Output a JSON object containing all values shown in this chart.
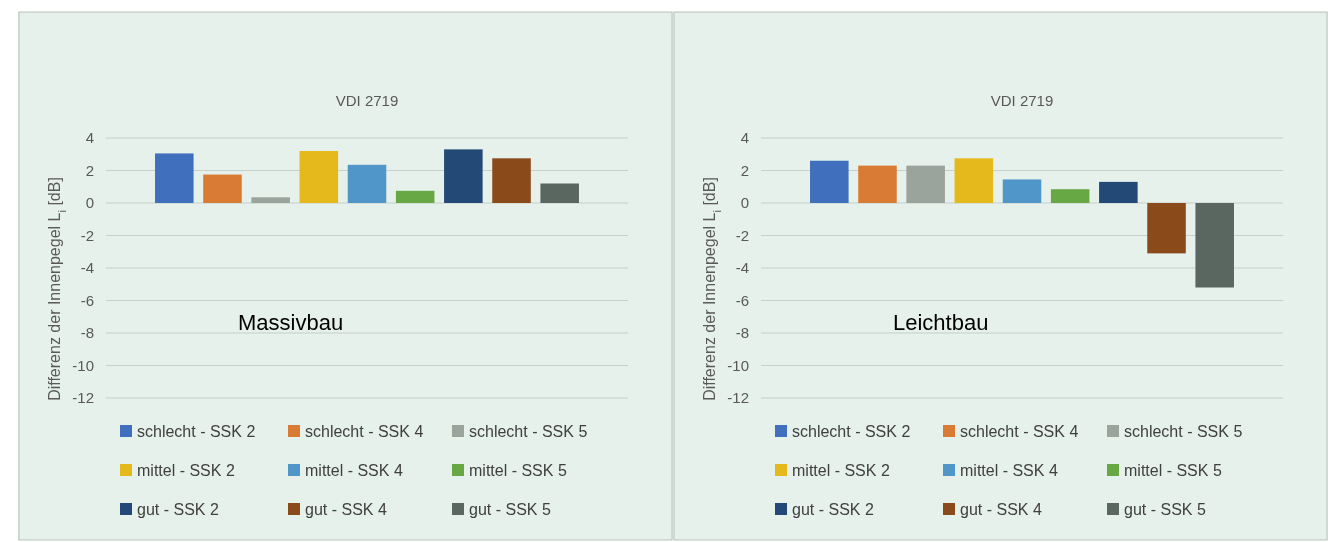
{
  "chart_data": [
    {
      "type": "bar",
      "title": "VDI 2719",
      "ylabel": "Differenz der Innenpegel L$_{i}$ [dB]",
      "annotations": [
        "Massivbau"
      ],
      "categories": [
        null
      ],
      "ylim": [
        -12,
        4
      ],
      "yticks": [
        -12,
        -10,
        -8,
        -6,
        -4,
        -2,
        0,
        2,
        4
      ],
      "grid": "y",
      "legend": "bottom",
      "series": [
        {
          "name": "schlecht - SSK 2",
          "color": "#3f6fbd",
          "values": [
            3.05
          ]
        },
        {
          "name": "schlecht - SSK 4",
          "color": "#d97b35",
          "values": [
            1.75
          ]
        },
        {
          "name": "schlecht - SSK 5",
          "color": "#9aa39c",
          "values": [
            0.35
          ]
        },
        {
          "name": "mittel - SSK 2",
          "color": "#e5b81c",
          "values": [
            3.2
          ]
        },
        {
          "name": "mittel - SSK 4",
          "color": "#5096c9",
          "values": [
            2.35
          ]
        },
        {
          "name": "mittel - SSK 5",
          "color": "#67a845",
          "values": [
            0.75
          ]
        },
        {
          "name": "gut - SSK 2",
          "color": "#234a77",
          "values": [
            3.3
          ]
        },
        {
          "name": "gut - SSK 4",
          "color": "#8b4a19",
          "values": [
            2.75
          ]
        },
        {
          "name": "gut - SSK 5",
          "color": "#5a6660",
          "values": [
            1.2
          ]
        }
      ]
    },
    {
      "type": "bar",
      "title": "VDI 2719",
      "ylabel": "Differenz der Innenpegel L$_{i}$ [dB]",
      "annotations": [
        "Leichtbau"
      ],
      "categories": [
        null
      ],
      "ylim": [
        -12,
        4
      ],
      "yticks": [
        -12,
        -10,
        -8,
        -6,
        -4,
        -2,
        0,
        2,
        4
      ],
      "grid": "y",
      "legend": "bottom",
      "series": [
        {
          "name": "schlecht - SSK 2",
          "color": "#3f6fbd",
          "values": [
            2.6
          ]
        },
        {
          "name": "schlecht - SSK 4",
          "color": "#d97b35",
          "values": [
            2.3
          ]
        },
        {
          "name": "schlecht - SSK 5",
          "color": "#9aa39c",
          "values": [
            2.3
          ]
        },
        {
          "name": "mittel - SSK 2",
          "color": "#e5b81c",
          "values": [
            2.75
          ]
        },
        {
          "name": "mittel - SSK 4",
          "color": "#5096c9",
          "values": [
            1.45
          ]
        },
        {
          "name": "mittel - SSK 5",
          "color": "#67a845",
          "values": [
            0.85
          ]
        },
        {
          "name": "gut - SSK 2",
          "color": "#234a77",
          "values": [
            1.3
          ]
        },
        {
          "name": "gut - SSK 4",
          "color": "#8b4a19",
          "values": [
            -3.1
          ]
        },
        {
          "name": "gut - SSK 5",
          "color": "#5a6660",
          "values": [
            -5.2
          ]
        }
      ]
    }
  ]
}
